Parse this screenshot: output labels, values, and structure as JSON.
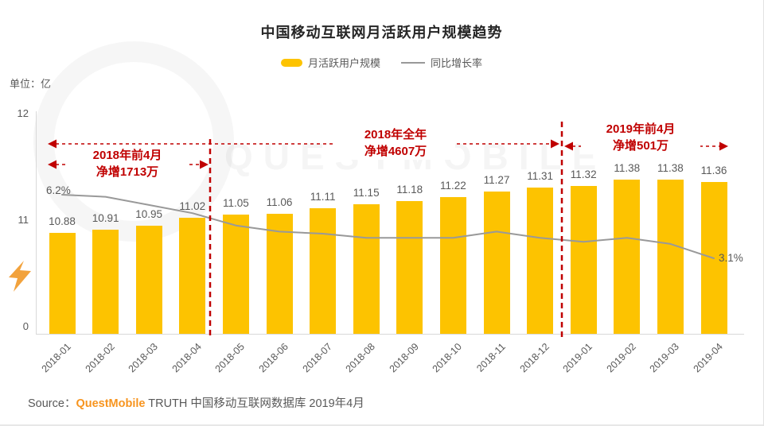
{
  "page": {
    "watermark": "QUESTMOBILE"
  },
  "header": {
    "title": "中国移动互联网月活跃用户规模趋势"
  },
  "legend": {
    "bar_label": "月活跃用户规模",
    "line_label": "同比增长率"
  },
  "axis": {
    "unit_label": "单位：亿",
    "y_ticks": [
      "12",
      "11",
      "0"
    ]
  },
  "chart_data": {
    "type": "bar",
    "title": "中国移动互联网月活跃用户规模趋势",
    "ylabel": "单位：亿",
    "y_ticks": [
      12,
      11,
      0
    ],
    "grid": false,
    "legend_position": "top",
    "categories": [
      "2018-01",
      "2018-02",
      "2018-03",
      "2018-04",
      "2018-05",
      "2018-06",
      "2018-07",
      "2018-08",
      "2018-09",
      "2018-10",
      "2018-11",
      "2018-12",
      "2019-01",
      "2019-02",
      "2019-03",
      "2019-04"
    ],
    "series": [
      {
        "name": "月活跃用户规模",
        "type": "bar",
        "unit": "亿",
        "values": [
          10.88,
          10.91,
          10.95,
          11.02,
          11.05,
          11.06,
          11.11,
          11.15,
          11.18,
          11.22,
          11.27,
          11.31,
          11.32,
          11.38,
          11.38,
          11.36
        ]
      },
      {
        "name": "同比增长率",
        "type": "line",
        "unit": "%",
        "values_estimated_pct": [
          6.2,
          6.1,
          5.7,
          5.3,
          4.7,
          4.4,
          4.3,
          4.1,
          4.1,
          4.1,
          4.4,
          4.1,
          3.9,
          4.1,
          3.8,
          3.1
        ],
        "labeled_points": {
          "2018-01": "6.2%",
          "2019-04": "3.1%"
        }
      }
    ]
  },
  "annotations": {
    "period_2018_4m": {
      "line1": "2018年前4月",
      "line2": "净增1713万"
    },
    "year_2018": {
      "line1": "2018年全年",
      "line2": "净增4607万"
    },
    "period_2019_4m": {
      "line1": "2019年前4月",
      "line2": "净增501万"
    },
    "line_start_label": "6.2%",
    "line_end_label": "3.1%"
  },
  "colors": {
    "bar": "#FDC300",
    "line": "#999999",
    "annotation_red": "#C00000",
    "brand_orange": "#F7941E"
  },
  "footer": {
    "source_prefix": "Source：",
    "brand": "QuestMobile",
    "source_rest": " TRUTH 中国移动互联网数据库 2019年4月"
  }
}
